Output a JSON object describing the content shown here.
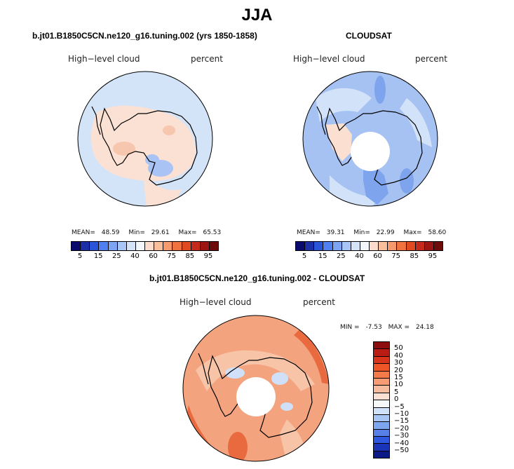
{
  "title": "JJA",
  "panels": {
    "model": {
      "title": "b.jt01.B1850C5CN.ne120_g16.tuning.002 (yrs 1850-1858)",
      "variable": "High−level cloud",
      "units": "percent",
      "stats": {
        "mean_label": "MEAN=",
        "mean": "48.59",
        "min_label": "Min=",
        "min": "29.61",
        "max_label": "Max=",
        "max": "65.53"
      }
    },
    "obs": {
      "title": "CLOUDSAT",
      "variable": "High−level cloud",
      "units": "percent",
      "stats": {
        "mean_label": "MEAN=",
        "mean": "39.31",
        "min_label": "Min=",
        "min": "22.99",
        "max_label": "Max=",
        "max": "58.60"
      }
    },
    "diff": {
      "title": "b.jt01.B1850C5CN.ne120_g16.tuning.002 - CLOUDSAT",
      "variable": "High−level cloud",
      "units": "percent",
      "stats": {
        "min_label": "MIN =",
        "min": "-7.53",
        "max_label": "MAX =",
        "max": "24.18"
      }
    }
  },
  "colorbar_levels": [
    "5",
    "15",
    "25",
    "40",
    "60",
    "75",
    "85",
    "95"
  ],
  "colorbar_colors": [
    "#0a0a6e",
    "#1c2fa6",
    "#2a55d8",
    "#4f7ff0",
    "#7ea4f4",
    "#a9c4f6",
    "#d4e3f8",
    "#f3f6fa",
    "#fbdccb",
    "#f9bf9d",
    "#f6996c",
    "#f0723f",
    "#e04a22",
    "#c4291b",
    "#9c1512",
    "#6e0a0a"
  ],
  "diff_colorbar_levels": [
    "50",
    "40",
    "30",
    "20",
    "15",
    "10",
    "5",
    "0",
    "−5",
    "−10",
    "−15",
    "−20",
    "−30",
    "−40",
    "−50"
  ],
  "diff_colorbar_colors": [
    "#8c0e0e",
    "#b81c14",
    "#d8341c",
    "#ee5628",
    "#f47a4a",
    "#f69b74",
    "#f7bca0",
    "#fae0d2",
    "#f6f7f9",
    "#d0e2f8",
    "#a8c6f4",
    "#7ea6ee",
    "#5680e8",
    "#2f58e0",
    "#1a34b8",
    "#0c1a86"
  ],
  "map_colors": {
    "model_base": "#d4e4f8",
    "model_warm": "#fbe1d3",
    "model_warm2": "#f6c6ae",
    "model_blue": "#a9c4f4",
    "obs_base": "#a6c2f3",
    "obs_light": "#d2e2f8",
    "obs_dark": "#7ea4ee",
    "obs_warm": "#fbe0d2",
    "diff_base": "#f4a37f",
    "diff_light": "#f8c4a8",
    "diff_dark": "#ea6a40",
    "diff_blue": "#cfe0f8"
  }
}
